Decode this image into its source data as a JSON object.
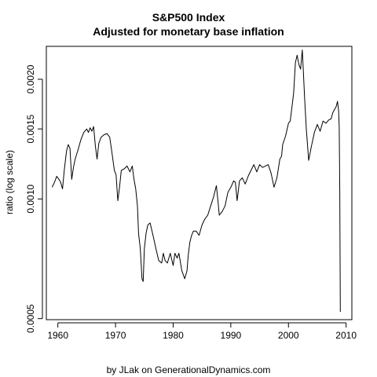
{
  "chart_data": {
    "type": "line",
    "title": "S&P500 Index",
    "subtitle": "Adjusted for monetary base inflation",
    "xlabel": "",
    "ylabel": "ratio (log scale)",
    "credit": "by JLak on GenerationalDynamics.com",
    "y_scale": "log",
    "grid": false,
    "legend": "none",
    "line_color": "#000000",
    "xlim": [
      1958,
      2011
    ],
    "ylim": [
      0.000497,
      0.00242
    ],
    "x_ticks": [
      1960,
      1970,
      1980,
      1990,
      2000,
      2010
    ],
    "x_tick_labels": [
      "1960",
      "1970",
      "1980",
      "1990",
      "2000",
      "2010"
    ],
    "y_ticks": [
      0.0005,
      0.001,
      0.0015,
      0.002
    ],
    "y_tick_labels": [
      "0.0005",
      "0.0010",
      "0.0015",
      "0.0020"
    ],
    "series": [
      {
        "x": [
          1959.0,
          1959.4,
          1959.8,
          1960.2,
          1960.5,
          1960.8,
          1961.1,
          1961.5,
          1961.8,
          1962.1,
          1962.4,
          1962.7,
          1963.0,
          1963.5,
          1964.0,
          1964.5,
          1965.0,
          1965.3,
          1965.6,
          1965.9,
          1966.2,
          1966.5,
          1966.8,
          1967.1,
          1967.5,
          1968.0,
          1968.5,
          1969.0,
          1969.4,
          1969.8,
          1970.1,
          1970.4,
          1970.7,
          1971.0,
          1971.5,
          1972.0,
          1972.5,
          1972.9,
          1973.2,
          1973.5,
          1973.8,
          1974.0,
          1974.3,
          1974.6,
          1974.8,
          1975.0,
          1975.3,
          1975.6,
          1976.0,
          1976.5,
          1977.0,
          1977.5,
          1978.0,
          1978.3,
          1978.6,
          1979.0,
          1979.5,
          1980.0,
          1980.3,
          1980.7,
          1981.0,
          1981.5,
          1982.0,
          1982.4,
          1982.6,
          1982.9,
          1983.2,
          1983.5,
          1984.0,
          1984.5,
          1985.0,
          1985.5,
          1986.0,
          1986.5,
          1987.0,
          1987.5,
          1987.8,
          1988.0,
          1988.5,
          1989.0,
          1989.5,
          1990.0,
          1990.5,
          1990.8,
          1991.1,
          1991.5,
          1992.0,
          1992.5,
          1993.0,
          1993.5,
          1994.0,
          1994.5,
          1995.0,
          1995.5,
          1996.0,
          1996.5,
          1997.0,
          1997.5,
          1998.0,
          1998.5,
          1998.8,
          1999.0,
          1999.5,
          2000.0,
          2000.3,
          2000.6,
          2000.9,
          2001.2,
          2001.5,
          2001.8,
          2002.1,
          2002.4,
          2002.6,
          2002.8,
          2003.1,
          2003.5,
          2004.0,
          2004.5,
          2005.0,
          2005.5,
          2006.0,
          2006.5,
          2007.0,
          2007.4,
          2007.7,
          2008.0,
          2008.3,
          2008.5,
          2008.7,
          2008.8,
          2008.9,
          2009.0
        ],
        "y": [
          0.00107,
          0.0011,
          0.00114,
          0.00112,
          0.0011,
          0.00106,
          0.00118,
          0.00132,
          0.00137,
          0.00134,
          0.00112,
          0.0012,
          0.00126,
          0.00133,
          0.00141,
          0.00147,
          0.0015,
          0.00147,
          0.00151,
          0.00148,
          0.00152,
          0.00136,
          0.00126,
          0.00138,
          0.00143,
          0.00145,
          0.00146,
          0.00143,
          0.0013,
          0.00118,
          0.00115,
          0.00099,
          0.00107,
          0.00118,
          0.00119,
          0.00121,
          0.00117,
          0.00121,
          0.00112,
          0.00106,
          0.00096,
          0.00082,
          0.00075,
          0.00063,
          0.00062,
          0.00075,
          0.00082,
          0.00086,
          0.00087,
          0.00081,
          0.00075,
          0.0007,
          0.00069,
          0.00073,
          0.0007,
          0.00069,
          0.00073,
          0.00068,
          0.00073,
          0.00071,
          0.00073,
          0.00066,
          0.00063,
          0.00066,
          0.00072,
          0.00078,
          0.00081,
          0.00083,
          0.00083,
          0.00081,
          0.00086,
          0.00089,
          0.00091,
          0.00096,
          0.00101,
          0.00108,
          0.00098,
          0.00091,
          0.00093,
          0.00096,
          0.00104,
          0.00107,
          0.00111,
          0.0011,
          0.00099,
          0.00111,
          0.00113,
          0.00109,
          0.00114,
          0.00118,
          0.00122,
          0.00117,
          0.00122,
          0.0012,
          0.00121,
          0.00122,
          0.00116,
          0.00107,
          0.00113,
          0.00126,
          0.00128,
          0.00137,
          0.00144,
          0.00155,
          0.00157,
          0.0017,
          0.00185,
          0.0022,
          0.0023,
          0.00218,
          0.00212,
          0.00237,
          0.00208,
          0.0018,
          0.0015,
          0.00125,
          0.00136,
          0.00147,
          0.00154,
          0.00148,
          0.00157,
          0.00155,
          0.00158,
          0.00159,
          0.00165,
          0.00168,
          0.00171,
          0.00176,
          0.00167,
          0.00151,
          0.00105,
          0.00052
        ]
      }
    ]
  }
}
